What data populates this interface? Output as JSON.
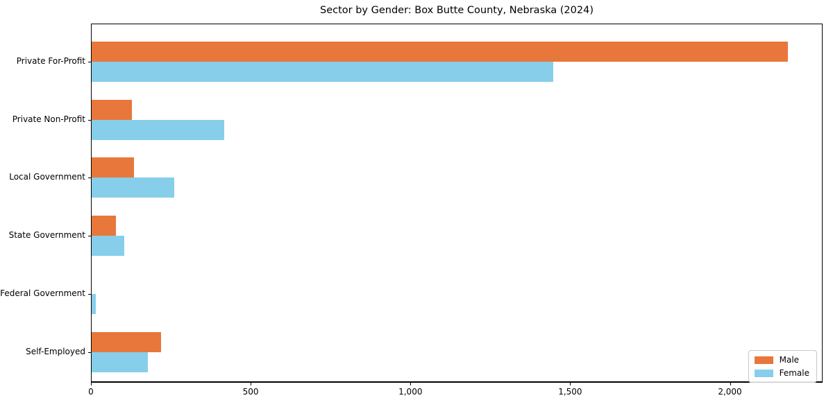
{
  "chart_data": {
    "type": "bar",
    "orientation": "horizontal",
    "title": "Sector by Gender: Box Butte County, Nebraska (2024)",
    "xlabel": "",
    "ylabel": "",
    "categories": [
      "Private For-Profit",
      "Private Non-Profit",
      "Local Government",
      "State Government",
      "Federal Government",
      "Self-Employed"
    ],
    "series": [
      {
        "name": "Male",
        "color": "#e8773b",
        "values": [
          2180,
          125,
          132,
          75,
          0,
          217
        ]
      },
      {
        "name": "Female",
        "color": "#87ceeb",
        "values": [
          1445,
          415,
          258,
          103,
          13,
          176
        ]
      }
    ],
    "xlim": [
      0,
      2290
    ],
    "x_ticks": [
      0,
      500,
      1000,
      1500,
      2000
    ],
    "x_tick_labels": [
      "0",
      "500",
      "1,000",
      "1,500",
      "2,000"
    ],
    "grid": false,
    "legend_position": "lower right",
    "legend_entries": [
      "Male",
      "Female"
    ],
    "colors": {
      "male": "#e8773b",
      "female": "#87ceeb",
      "text": "#000000",
      "spine": "#000000",
      "legend_border": "#c9c9c9"
    }
  }
}
